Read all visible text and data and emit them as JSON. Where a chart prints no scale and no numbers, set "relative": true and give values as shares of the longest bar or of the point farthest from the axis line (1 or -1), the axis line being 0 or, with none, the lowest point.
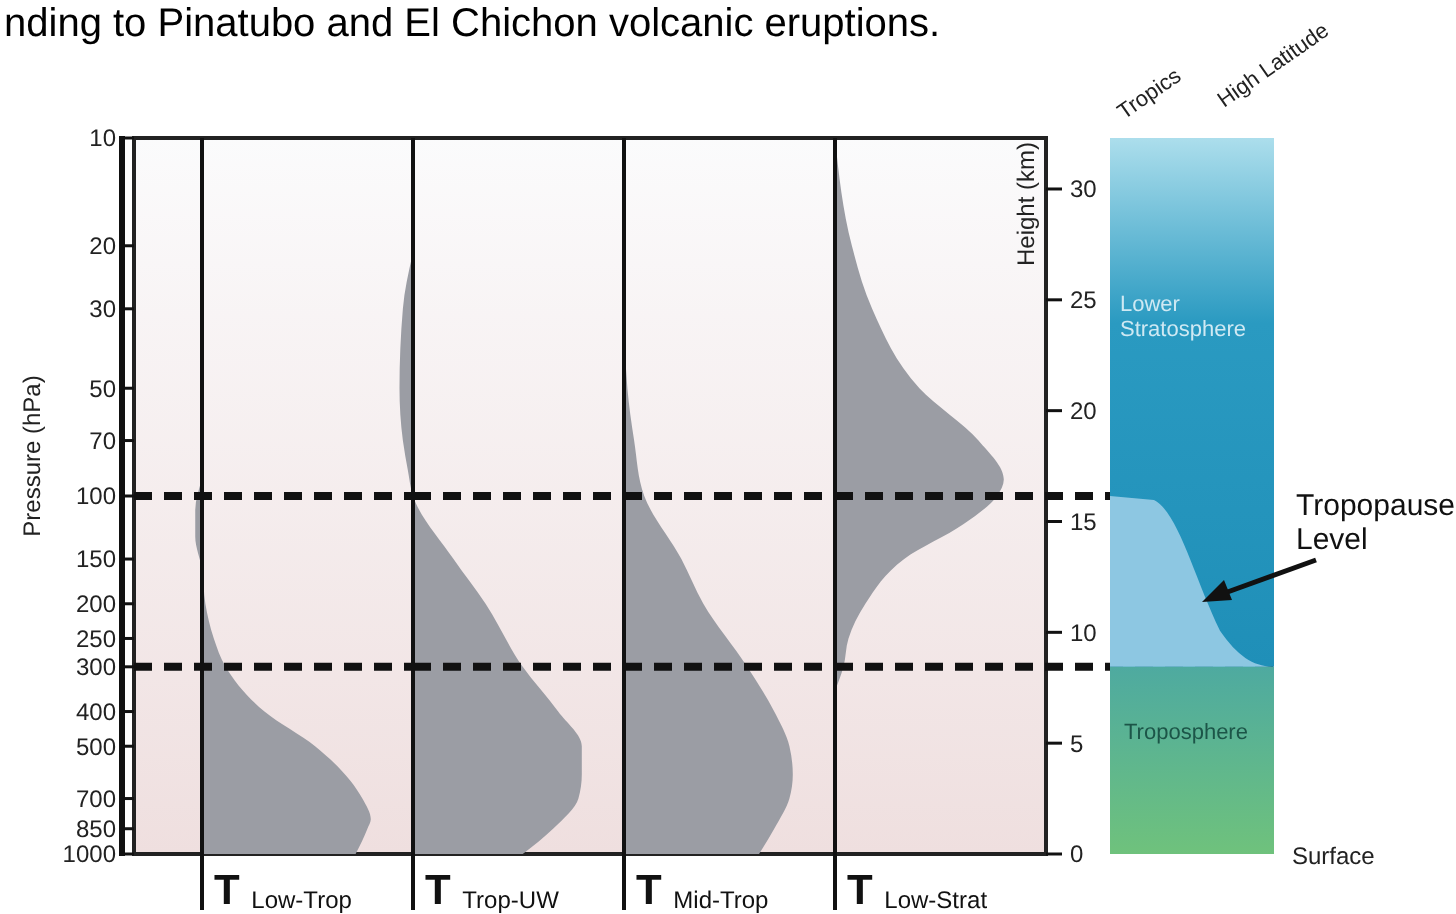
{
  "chart_data": [
    {
      "type": "area",
      "orientation": "horizontal",
      "relative": true,
      "log": "y",
      "tick_labels": "y",
      "ylabel": "Pressure (hPa)",
      "ylim": [
        1000,
        10
      ],
      "yticks": [
        10,
        20,
        30,
        50,
        70,
        100,
        150,
        200,
        250,
        300,
        400,
        500,
        700,
        850,
        1000
      ],
      "series": [
        {
          "name": "T$_{Low-Trop}$",
          "color": "#9b9da4",
          "x": [
            90,
            110,
            130,
            160,
            200,
            250,
            300,
            400,
            500,
            700,
            800,
            850,
            1000
          ],
          "values": [
            0,
            -0.04,
            -0.04,
            0,
            0.02,
            0.07,
            0.14,
            0.37,
            0.67,
            0.95,
            1,
            0.98,
            0.91
          ]
        }
      ],
      "ref_lines": [
        {
          "axis": "y",
          "value": 100,
          "line_style": "dashed",
          "color": "#111111"
        },
        {
          "axis": "y",
          "value": 300,
          "line_style": "dashed",
          "color": "#111111"
        }
      ]
    },
    {
      "type": "area",
      "orientation": "horizontal",
      "relative": true,
      "log": "y",
      "tick_labels": false,
      "ylim": [
        1000,
        10
      ],
      "series": [
        {
          "name": "T$_{Trop-UW}$",
          "color": "#9b9da4",
          "x": [
            20,
            30,
            50,
            70,
            85,
            100,
            150,
            200,
            300,
            400,
            500,
            600,
            700,
            850,
            1000
          ],
          "values": [
            0.01,
            -0.06,
            -0.08,
            -0.06,
            -0.03,
            0,
            0.24,
            0.43,
            0.65,
            0.86,
            1,
            1,
            0.98,
            0.83,
            0.65
          ]
        }
      ],
      "ref_lines": [
        {
          "axis": "y",
          "value": 100,
          "line_style": "dashed",
          "color": "#111111"
        },
        {
          "axis": "y",
          "value": 300,
          "line_style": "dashed",
          "color": "#111111"
        }
      ]
    },
    {
      "type": "area",
      "orientation": "horizontal",
      "relative": true,
      "log": "y",
      "tick_labels": false,
      "ylim": [
        1000,
        10
      ],
      "series": [
        {
          "name": "T$_{Mid-Trop}$",
          "color": "#9b9da4",
          "x": [
            30,
            50,
            70,
            100,
            150,
            200,
            300,
            400,
            500,
            600,
            700,
            850,
            1000
          ],
          "values": [
            0,
            0.02,
            0.06,
            0.12,
            0.34,
            0.47,
            0.73,
            0.89,
            0.98,
            1,
            0.98,
            0.89,
            0.8
          ]
        }
      ],
      "ref_lines": [
        {
          "axis": "y",
          "value": 100,
          "line_style": "dashed",
          "color": "#111111"
        },
        {
          "axis": "y",
          "value": 300,
          "line_style": "dashed",
          "color": "#111111"
        }
      ]
    },
    {
      "type": "area",
      "orientation": "horizontal",
      "relative": true,
      "log": "y",
      "tick_labels": "y2",
      "ylim": [
        1000,
        10
      ],
      "y2label": "Height (km)",
      "y2lim": [
        0,
        32.3
      ],
      "y2ticks": [
        0,
        5,
        10,
        15,
        20,
        25,
        30
      ],
      "series": [
        {
          "name": "T$_{Low-Strat}$",
          "color": "#9b9da4",
          "x": [
            10,
            20,
            30,
            50,
            70,
            90,
            100,
            120,
            150,
            200,
            250,
            300,
            350
          ],
          "values": [
            0,
            0.1,
            0.22,
            0.5,
            0.85,
            1,
            0.96,
            0.76,
            0.41,
            0.18,
            0.08,
            0.05,
            0
          ]
        }
      ],
      "ref_lines": [
        {
          "axis": "y",
          "value": 100,
          "line_style": "dashed",
          "color": "#111111"
        },
        {
          "axis": "y",
          "value": 300,
          "line_style": "dashed",
          "color": "#111111"
        }
      ]
    },
    {
      "type": "other",
      "annotations": [
        "nding to Pinatubo and El Chichon volcanic eruptions.",
        "Tropics",
        "High Latitude",
        "Lower Stratosphere",
        "Troposphere",
        "Tropopause Level",
        "Surface"
      ]
    }
  ]
}
